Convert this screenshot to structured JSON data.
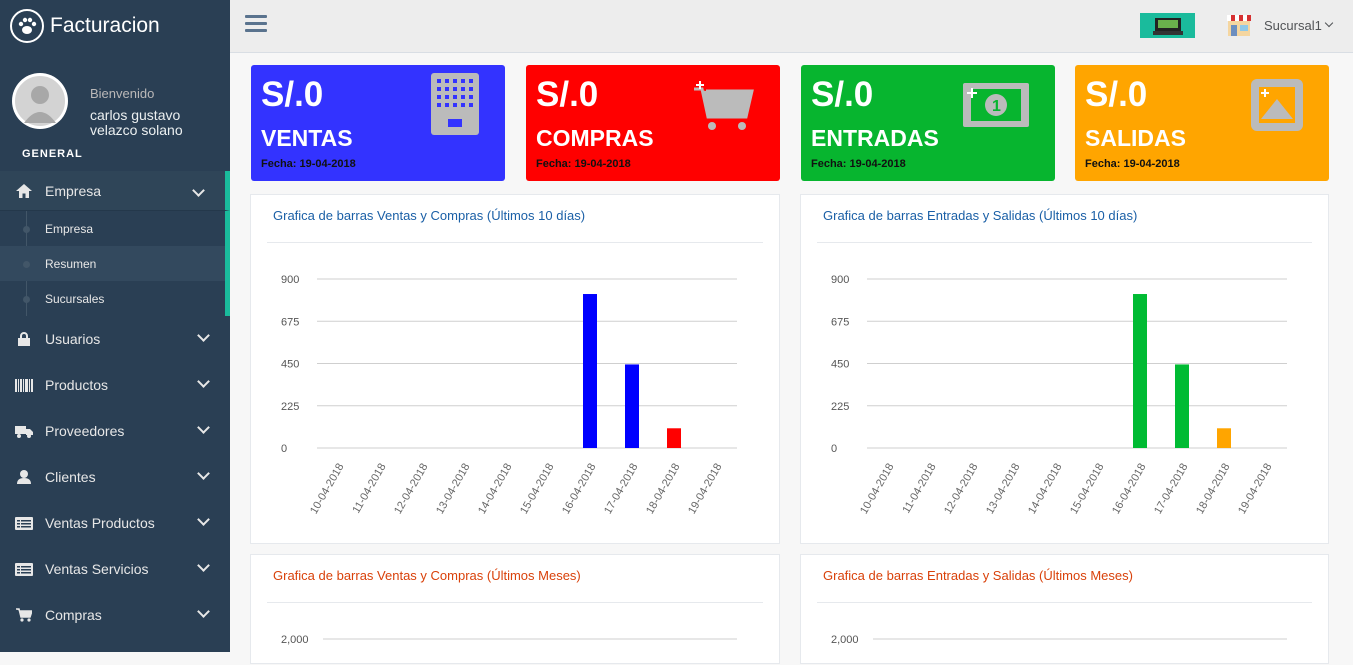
{
  "app": {
    "title": "Facturacion"
  },
  "profile": {
    "welcome": "Bienvenido",
    "name": "carlos gustavo velazco solano"
  },
  "sidebar": {
    "section": "GENERAL",
    "items": [
      {
        "label": "Empresa",
        "icon": "home-icon"
      },
      {
        "label": "Usuarios",
        "icon": "lock-icon"
      },
      {
        "label": "Productos",
        "icon": "barcode-icon"
      },
      {
        "label": "Proveedores",
        "icon": "truck-icon"
      },
      {
        "label": "Clientes",
        "icon": "user-icon"
      },
      {
        "label": "Ventas Productos",
        "icon": "list-icon"
      },
      {
        "label": "Ventas Servicios",
        "icon": "list-icon"
      },
      {
        "label": "Compras",
        "icon": "cart-icon"
      }
    ],
    "submenu": [
      "Empresa",
      "Resumen",
      "Sucursales"
    ]
  },
  "topbar": {
    "branch": "Sucursal1",
    "icons": [
      "menu-icon",
      "cash-register-icon",
      "store-icon"
    ]
  },
  "cards": [
    {
      "amount": "S/.0",
      "label": "VENTAS",
      "date": "Fecha: 19-04-2018",
      "color": "#3333ff",
      "icon": "calculator-icon"
    },
    {
      "amount": "S/.0",
      "label": "COMPRAS",
      "date": "Fecha: 19-04-2018",
      "color": "#ff0000",
      "icon": "cart-plus-icon"
    },
    {
      "amount": "S/.0",
      "label": "ENTRADAS",
      "date": "Fecha: 19-04-2018",
      "color": "#07b52f",
      "icon": "money-icon"
    },
    {
      "amount": "S/.0",
      "label": "SALIDAS",
      "date": "Fecha: 19-04-2018",
      "color": "#ffa500",
      "icon": "image-icon"
    }
  ],
  "panels": {
    "p1": "Grafica de barras Ventas y Compras (Últimos 10 días)",
    "p2": "Grafica de barras Entradas y Salidas (Últimos 10 días)",
    "p3": "Grafica de barras Ventas y Compras (Últimos Meses)",
    "p4": "Grafica de barras Entradas y Salidas (Últimos Meses)"
  },
  "chart_data": [
    {
      "type": "bar",
      "title": "Grafica de barras Ventas y Compras (Últimos 10 días)",
      "categories": [
        "10-04-2018",
        "11-04-2018",
        "12-04-2018",
        "13-04-2018",
        "14-04-2018",
        "15-04-2018",
        "16-04-2018",
        "17-04-2018",
        "18-04-2018",
        "19-04-2018"
      ],
      "yticks": [
        0,
        225,
        450,
        675,
        900
      ],
      "ylim": [
        0,
        900
      ],
      "series": [
        {
          "color": "#0000ff",
          "values": [
            0,
            0,
            0,
            0,
            0,
            0,
            820,
            445,
            0,
            0
          ]
        },
        {
          "color": "#ff0000",
          "values": [
            0,
            0,
            0,
            0,
            0,
            0,
            0,
            0,
            105,
            0
          ]
        }
      ]
    },
    {
      "type": "bar",
      "title": "Grafica de barras Entradas y Salidas (Últimos 10 días)",
      "categories": [
        "10-04-2018",
        "11-04-2018",
        "12-04-2018",
        "13-04-2018",
        "14-04-2018",
        "15-04-2018",
        "16-04-2018",
        "17-04-2018",
        "18-04-2018",
        "19-04-2018"
      ],
      "yticks": [
        0,
        225,
        450,
        675,
        900
      ],
      "ylim": [
        0,
        900
      ],
      "series": [
        {
          "color": "#00bb33",
          "values": [
            0,
            0,
            0,
            0,
            0,
            0,
            820,
            445,
            0,
            0
          ]
        },
        {
          "color": "#ffa500",
          "values": [
            0,
            0,
            0,
            0,
            0,
            0,
            0,
            0,
            105,
            0
          ]
        }
      ]
    },
    {
      "type": "bar",
      "title": "Grafica de barras Ventas y Compras (Últimos Meses)",
      "yticks": [
        "2,000"
      ]
    },
    {
      "type": "bar",
      "title": "Grafica de barras Entradas y Salidas (Últimos Meses)",
      "yticks": [
        "2,000"
      ]
    }
  ]
}
